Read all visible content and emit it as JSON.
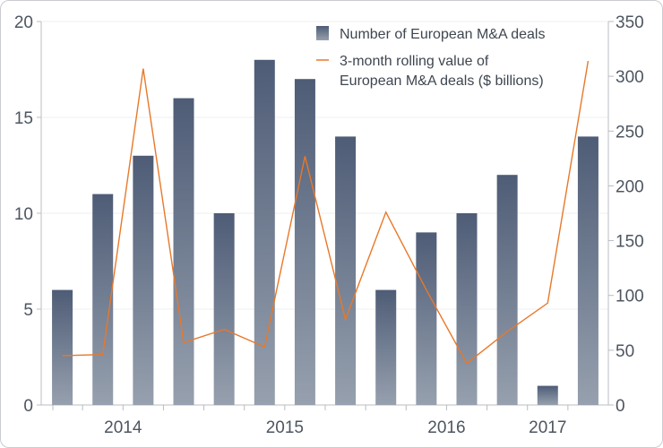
{
  "chart_data": {
    "type": "bar",
    "title": "",
    "xlabel": "",
    "ylabel": "",
    "grid": true,
    "legend_position": "top-right",
    "x_tick_labels": [
      "2014",
      "2015",
      "2016",
      "2017"
    ],
    "x_tick_positions": [
      2,
      6,
      10,
      12.5
    ],
    "series": [
      {
        "name": "Number of European M&A deals",
        "type": "bar",
        "axis": "left",
        "color": "#4e5c76",
        "values": [
          6,
          11,
          13,
          16,
          10,
          18,
          17,
          14,
          6,
          9,
          10,
          12,
          1,
          14
        ]
      },
      {
        "name": "3-month rolling value of European M&A deals ($ billions)",
        "type": "line",
        "axis": "right",
        "color": "#e8782a",
        "values": [
          45,
          46,
          307,
          57,
          69,
          53,
          227,
          78,
          176,
          105,
          38,
          67,
          93,
          314
        ]
      }
    ],
    "y_left": {
      "min": 0,
      "max": 20,
      "ticks": [
        0,
        5,
        10,
        15,
        20
      ]
    },
    "y_right": {
      "min": 0,
      "max": 350,
      "ticks": [
        0,
        50,
        100,
        150,
        200,
        250,
        300,
        350
      ]
    }
  }
}
